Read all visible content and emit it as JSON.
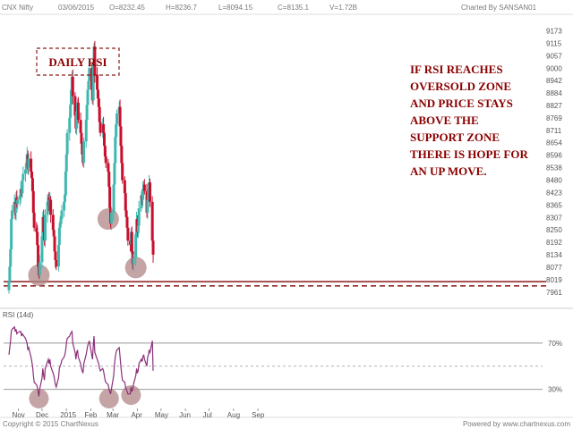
{
  "header": {
    "symbol": "CNX Nifty",
    "date": "03/06/2015",
    "open": "O=8232.45",
    "high": "H=8236.7",
    "low": "L=8094.15",
    "close": "C=8135.1",
    "volume": "V=1.72B",
    "credit": "Charted By SANSAN01"
  },
  "footer": {
    "copyright": "Copyright © 2015 ChartNexus",
    "powered": "Powered by www.chartnexus.com"
  },
  "annotation": {
    "box_label": "DAILY RSI",
    "lines": [
      "IF RSI REACHES",
      "OVERSOLD ZONE",
      "AND PRICE STAYS",
      "ABOVE THE",
      "SUPPORT ZONE",
      "THERE IS HOPE FOR",
      "AN UP MOVE."
    ]
  },
  "colors": {
    "up_candle": "#3fb8b0",
    "down_candle": "#c8102e",
    "support_line": "#8b1a1a",
    "circle": "#b08585",
    "rsi_line": "#8b2f7a",
    "rsi_level": "#999999",
    "annotation": "#8b0000"
  },
  "chart_data": {
    "type": "candlestick",
    "title": "CNX Nifty",
    "price_axis_ticks": [
      9173,
      9115,
      9057,
      9000,
      8942,
      8884,
      8827,
      8769,
      8711,
      8654,
      8596,
      8538,
      8480,
      8423,
      8365,
      8307,
      8250,
      8192,
      8134,
      8077,
      8019,
      7961
    ],
    "price_ylim": [
      7940,
      9200
    ],
    "x_month_labels": [
      "Nov",
      "Dec",
      "2015",
      "Feb",
      "Mar",
      "Apr",
      "May",
      "Jun",
      "Jul",
      "Aug",
      "Sep"
    ],
    "support_level": 8010,
    "support_level_2": 7990,
    "closes": [
      8010,
      8080,
      8160,
      8300,
      8340,
      8380,
      8330,
      8400,
      8370,
      8390,
      8410,
      8440,
      8420,
      8480,
      8510,
      8530,
      8560,
      8600,
      8540,
      8580,
      8520,
      8490,
      8430,
      8330,
      8260,
      8240,
      8180,
      8080,
      8040,
      8100,
      8220,
      8310,
      8240,
      8200,
      8320,
      8380,
      8400,
      8360,
      8390,
      8320,
      8250,
      8220,
      8150,
      8110,
      8080,
      8180,
      8260,
      8280,
      8300,
      8340,
      8380,
      8410,
      8520,
      8600,
      8700,
      8770,
      8830,
      8900,
      8960,
      8870,
      8780,
      8720,
      8800,
      8840,
      8760,
      8700,
      8650,
      8600,
      8560,
      8660,
      8760,
      8830,
      8900,
      8940,
      9000,
      8900,
      8850,
      9020,
      9100,
      8970,
      8900,
      8860,
      8820,
      8750,
      8700,
      8740,
      8700,
      8640,
      8590,
      8560,
      8520,
      8450,
      8350,
      8280,
      8330,
      8460,
      8560,
      8680,
      8740,
      8790,
      8820,
      8730,
      8640,
      8560,
      8480,
      8420,
      8340,
      8310,
      8260,
      8200,
      8180,
      8240,
      8150,
      8090,
      8120,
      8230,
      8300,
      8240,
      8270,
      8350,
      8410,
      8390,
      8440,
      8460,
      8430,
      8330,
      8390,
      8440,
      8470,
      8380,
      8200,
      8135
    ],
    "candles_start": "2014-10-20",
    "rsi": {
      "label": "RSI (14d)",
      "levels": [
        70,
        30
      ],
      "ylim": [
        15,
        90
      ],
      "values": [
        60,
        66,
        72,
        80,
        82,
        84,
        80,
        82,
        78,
        79,
        80,
        80,
        76,
        78,
        77,
        74,
        72,
        70,
        64,
        66,
        58,
        54,
        50,
        42,
        36,
        34,
        32,
        28,
        24,
        30,
        40,
        48,
        42,
        38,
        48,
        54,
        56,
        52,
        56,
        50,
        44,
        42,
        38,
        34,
        32,
        40,
        48,
        50,
        52,
        55,
        58,
        60,
        64,
        70,
        74,
        76,
        78,
        79,
        80,
        70,
        62,
        56,
        62,
        64,
        58,
        52,
        48,
        46,
        44,
        52,
        60,
        64,
        68,
        70,
        72,
        60,
        56,
        68,
        76,
        62,
        56,
        54,
        52,
        48,
        46,
        48,
        46,
        42,
        38,
        36,
        34,
        30,
        28,
        26,
        30,
        42,
        52,
        58,
        62,
        64,
        66,
        58,
        50,
        44,
        38,
        36,
        32,
        30,
        28,
        26,
        26,
        32,
        28,
        30,
        34,
        42,
        48,
        44,
        46,
        52,
        56,
        54,
        58,
        60,
        56,
        50,
        58,
        60,
        64,
        62,
        72,
        46
      ]
    }
  }
}
